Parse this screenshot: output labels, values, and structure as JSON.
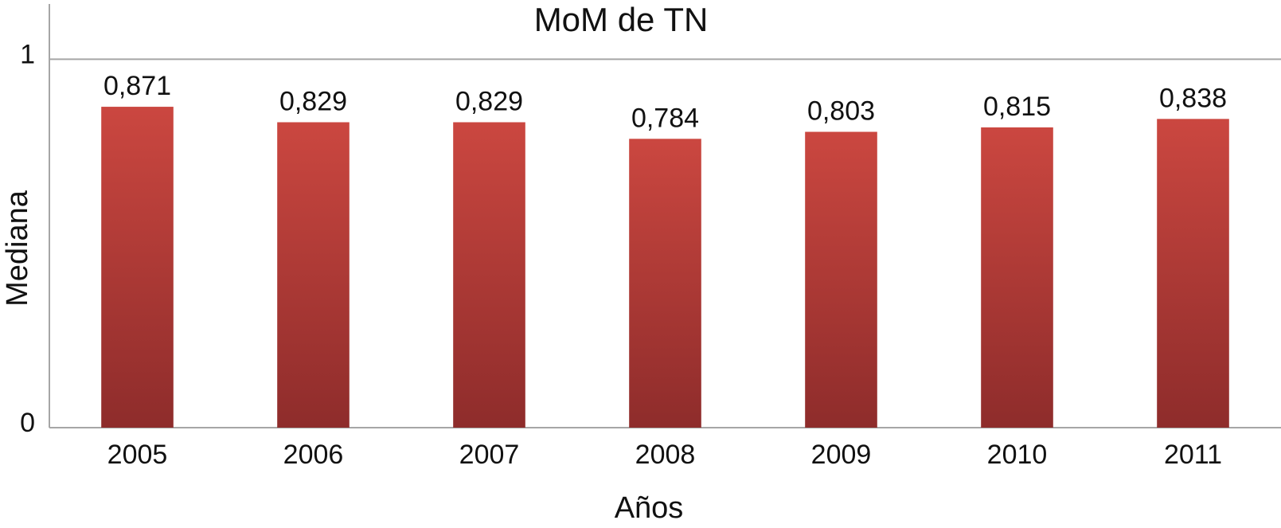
{
  "chart_data": {
    "type": "bar",
    "title": "MoM de TN",
    "x_label": "Años",
    "y_label": "Mediana",
    "categories": [
      "2005",
      "2006",
      "2007",
      "2008",
      "2009",
      "2010",
      "2011"
    ],
    "values": [
      0.871,
      0.829,
      0.829,
      0.784,
      0.803,
      0.815,
      0.838
    ],
    "value_labels": [
      "0,871",
      "0,829",
      "0,829",
      "0,784",
      "0,803",
      "0,815",
      "0,838"
    ],
    "color": "#cb4740",
    "ylim": [
      0,
      1.15
    ],
    "yticks": [
      0,
      1
    ],
    "grid": true
  }
}
